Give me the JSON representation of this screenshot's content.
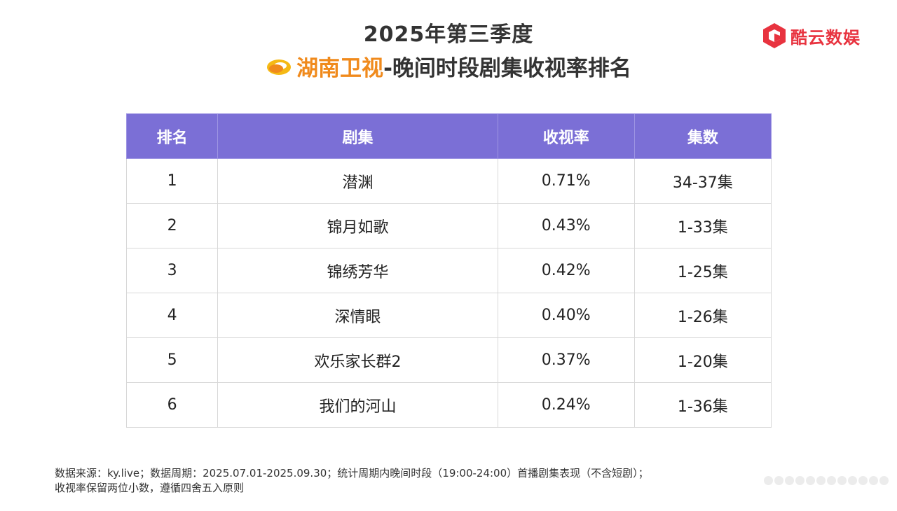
{
  "header": {
    "title_line1": "2025年第三季度",
    "channel": "湖南卫视",
    "title_suffix": "-晚间时段剧集收视率排名",
    "brand": "酷云数娱",
    "brand_color": "#e8333f",
    "channel_color": "#f08a1c"
  },
  "table": {
    "header_color": "#7b6fd6",
    "columns": [
      "排名",
      "剧集",
      "收视率",
      "集数"
    ],
    "rows": [
      {
        "rank": "1",
        "drama": "潜渊",
        "rating": "0.71%",
        "episodes": "34-37集"
      },
      {
        "rank": "2",
        "drama": "锦月如歌",
        "rating": "0.43%",
        "episodes": "1-33集"
      },
      {
        "rank": "3",
        "drama": "锦绣芳华",
        "rating": "0.42%",
        "episodes": "1-25集"
      },
      {
        "rank": "4",
        "drama": "深情眼",
        "rating": "0.40%",
        "episodes": "1-26集"
      },
      {
        "rank": "5",
        "drama": "欢乐家长群2",
        "rating": "0.37%",
        "episodes": "1-20集"
      },
      {
        "rank": "6",
        "drama": "我们的河山",
        "rating": "0.24%",
        "episodes": "1-36集"
      }
    ]
  },
  "footer": {
    "line1": "数据来源：ky.live；数据周期：2025.07.01-2025.09.30；统计周期内晚间时段（19:00-24:00）首播剧集表现（不含短剧）；",
    "line2": "收视率保留两位小数，遵循四舍五入原则"
  }
}
